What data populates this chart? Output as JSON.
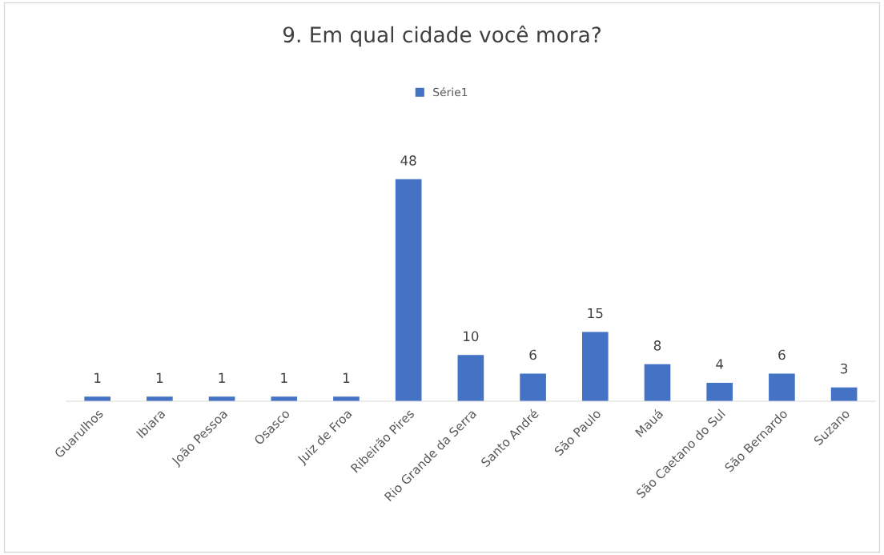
{
  "chart_data": {
    "type": "bar",
    "title": "9. Em qual cidade você mora?",
    "categories": [
      "Guarulhos",
      "Ibiara",
      "João Pessoa",
      "Osasco",
      "Juiz de Froa",
      "Ribeirão Pires",
      "Rio Grande da Serra",
      "Santo André",
      "São Paulo",
      "Mauá",
      "São Caetano do Sul",
      "São Bernardo",
      "Suzano"
    ],
    "series": [
      {
        "name": "Série1",
        "color": "#4472c4",
        "values": [
          1,
          1,
          1,
          1,
          1,
          48,
          10,
          6,
          15,
          8,
          4,
          6,
          3
        ]
      }
    ],
    "data_labels": true,
    "legend": "top",
    "tick_labels": "x",
    "grid": false
  }
}
